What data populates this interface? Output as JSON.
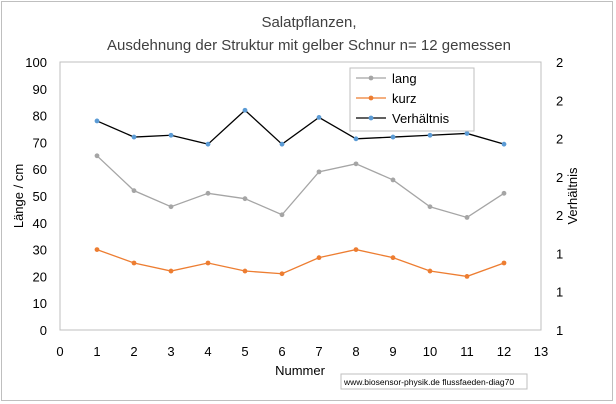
{
  "chart_data": {
    "type": "line",
    "title": "Salatpflanzen,",
    "subtitle": "Ausdehnung der Struktur mit gelber Schnur n= 12 gemessen",
    "xlabel": "Nummer",
    "ylabel": "Länge / cm",
    "y2label": "Verhältnis",
    "xlim": [
      0,
      13
    ],
    "ylim": [
      0,
      100
    ],
    "y2lim": [
      1,
      2.5
    ],
    "x_ticks": [
      "0",
      "1",
      "2",
      "3",
      "4",
      "5",
      "6",
      "7",
      "8",
      "9",
      "10",
      "11",
      "12",
      "13"
    ],
    "y_ticks": [
      "0",
      "10",
      "20",
      "30",
      "40",
      "50",
      "60",
      "70",
      "80",
      "90",
      "100"
    ],
    "y2_ticks": [
      "1",
      "1",
      "1",
      "2",
      "2",
      "2",
      "2",
      "2"
    ],
    "legend_position": "top-right (inside plot)",
    "x": [
      1,
      2,
      3,
      4,
      5,
      6,
      7,
      8,
      9,
      10,
      11,
      12
    ],
    "series": [
      {
        "name": "lang",
        "axis": "left",
        "color": "#a5a5a5",
        "values": [
          65,
          52,
          46,
          51,
          49,
          43,
          59,
          62,
          56,
          46,
          42,
          51
        ]
      },
      {
        "name": "kurz",
        "axis": "left",
        "color": "#ed7d31",
        "values": [
          30,
          25,
          22,
          25,
          22,
          21,
          27,
          30,
          27,
          22,
          20,
          25
        ]
      },
      {
        "name": "Verhältnis",
        "axis": "right",
        "color": "#000000",
        "marker_color": "#5b9bd5",
        "values": [
          2.17,
          2.08,
          2.09,
          2.04,
          2.23,
          2.04,
          2.19,
          2.07,
          2.08,
          2.09,
          2.1,
          2.04
        ]
      }
    ],
    "grid": false
  },
  "credit": "www.biosensor-physik.de  flussfaeden-diag70"
}
